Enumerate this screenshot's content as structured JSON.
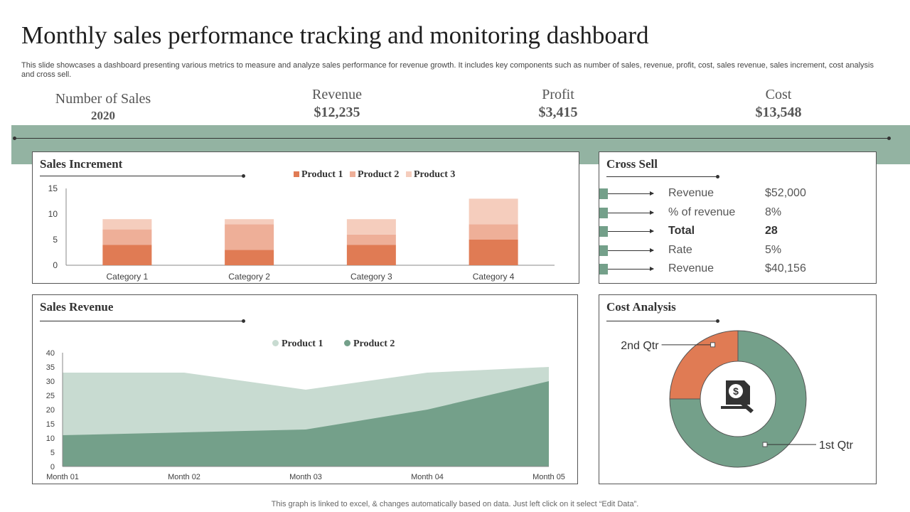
{
  "page": {
    "title": "Monthly sales performance tracking and monitoring dashboard",
    "description": "This slide showcases a dashboard presenting various metrics to measure and analyze sales performance for revenue growth. It includes key components such as number of sales, revenue, profit, cost, sales revenue, sales increment, cost analysis and cross sell.",
    "footer": "This graph is linked to excel, & changes automatically based on data. Just left click on it select “Edit Data”."
  },
  "kpis": {
    "sales": {
      "label": "Number of Sales",
      "value": "2020"
    },
    "revenue": {
      "label": "Revenue",
      "value": "$12,235"
    },
    "profit": {
      "label": "Profit",
      "value": "$3,415"
    },
    "cost": {
      "label": "Cost",
      "value": "$13,548"
    }
  },
  "panels": {
    "sales_increment": "Sales Increment",
    "cross_sell": "Cross Sell",
    "sales_revenue": "Sales Revenue",
    "cost_analysis": "Cost Analysis"
  },
  "cross_sell": [
    {
      "label": "Revenue",
      "value": "$52,000",
      "bold": false
    },
    {
      "label": "% of revenue",
      "value": "8%",
      "bold": false
    },
    {
      "label": "Total",
      "value": "28",
      "bold": true
    },
    {
      "label": "Rate",
      "value": "5%",
      "bold": false
    },
    {
      "label": "Revenue",
      "value": "$40,156",
      "bold": false
    }
  ],
  "icons": {
    "cost_center": "money-document-icon"
  },
  "colors": {
    "band": "#93b3a2",
    "p1": "#e07b54",
    "p2": "#eeaf98",
    "p3": "#f5cdbd",
    "rev1": "#c8dbd1",
    "rev2": "#74a08a",
    "q1": "#74a08a",
    "q2": "#e07b54"
  },
  "chart_data": [
    {
      "id": "sales_increment",
      "type": "bar",
      "stacked": true,
      "categories": [
        "Category 1",
        "Category 2",
        "Category 3",
        "Category 4"
      ],
      "series": [
        {
          "name": "Product 1",
          "values": [
            4,
            3,
            4,
            5
          ]
        },
        {
          "name": "Product 2",
          "values": [
            3,
            5,
            2,
            3
          ]
        },
        {
          "name": "Product 3",
          "values": [
            2,
            1,
            3,
            5
          ]
        }
      ],
      "ylim": [
        0,
        15
      ],
      "yticks": [
        0,
        5,
        10,
        15
      ],
      "legend": "top"
    },
    {
      "id": "sales_revenue",
      "type": "area",
      "stacked": false,
      "x": [
        "Month 01",
        "Month 02",
        "Month 03",
        "Month 04",
        "Month 05"
      ],
      "series": [
        {
          "name": "Product 1",
          "values": [
            33,
            33,
            27,
            33,
            35
          ]
        },
        {
          "name": "Product 2",
          "values": [
            11,
            12,
            13,
            20,
            30
          ]
        }
      ],
      "ylim": [
        0,
        40
      ],
      "yticks": [
        0,
        5,
        10,
        15,
        20,
        25,
        30,
        35,
        40
      ],
      "legend": "top"
    },
    {
      "id": "cost_analysis",
      "type": "pie",
      "donut": true,
      "slices": [
        {
          "name": "1st Qtr",
          "value": 75
        },
        {
          "name": "2nd Qtr",
          "value": 25
        }
      ]
    }
  ]
}
